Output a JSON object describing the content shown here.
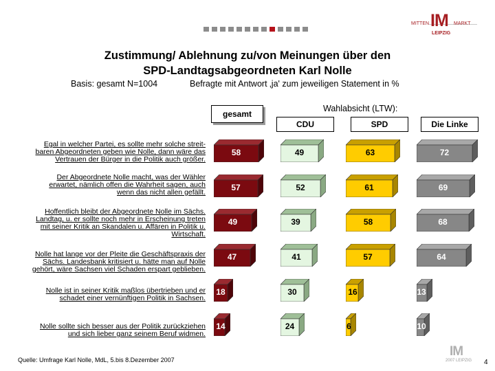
{
  "branding": {
    "logo_left": "MITTEN",
    "logo_main": "IM",
    "logo_right": "MARKT",
    "logo_city": "LEIPZIG",
    "footer_logo_main": "IM",
    "footer_logo_sub": "2007 LEIPZIG",
    "accent": "#a61e22"
  },
  "header": {
    "title_line1": "Zustimmung/ Ablehnung zu/von Meinungen über den",
    "title_line2": "SPD-Landtagsabgeordneten Karl Nolle",
    "basis": "Basis: gesamt  N=1004",
    "basis_note": "Befragte mit Antwort ‚ja' zum jeweiligen Statement in %"
  },
  "columns": {
    "group_label": "Wahlabsicht (LTW):",
    "gesamt": "gesamt",
    "cdu": "CDU",
    "spd": "SPD",
    "linke": "Die Linke"
  },
  "chart_data": {
    "type": "bar",
    "orientation": "horizontal",
    "unit": "%",
    "xlim": [
      0,
      100
    ],
    "categories": [
      "Egal in welcher Partei, es sollte mehr solche streitbaren Abgeordneten geben wie Nolle, dann wäre das Vertrauen der Bürger in die Politik auch größer.",
      "Der Abgeordnete Nolle macht, was der Wähler erwartet, nämlich offen die Wahrheit sagen, auch wenn das nicht allen gefällt.",
      "Hoffentlich bleibt der Abgeordnete Nolle im Sächs. Landtag, u. er sollte noch mehr in Erscheinung treten mit seiner Kritik an Skandalen u. Affären in Politik u. Wirtschaft.",
      "Nolle hat lange vor der Pleite die Geschäftspraxis der Sächs. Landesbank kritisiert u. hätte man auf Nolle gehört, wäre Sachsen viel Schaden erspart geblieben.",
      "Nolle ist in seiner Kritik maßlos übertrieben und er schadet einer vernünftigen Politik in Sachsen.",
      "Nolle sollte sich besser aus der Politik zurückziehen und sich lieber ganz seinem Beruf widmen."
    ],
    "statement_lines": [
      [
        "Egal in welcher Partei, es sollte mehr solche streit-",
        "baren Abgeordneten geben wie Nolle, dann wäre das",
        "Vertrauen der Bürger in die Politik auch größer."
      ],
      [
        "Der Abgeordnete Nolle macht, was der Wähler",
        "erwartet, nämlich offen die Wahrheit sagen, auch",
        "wenn das nicht allen gefällt."
      ],
      [
        "Hoffentlich bleibt der Abgeordnete Nolle im Sächs.",
        "Landtag, u. er sollte noch mehr in Erscheinung treten",
        "mit seiner Kritik an Skandalen u. Affären in Politik u.",
        "Wirtschaft."
      ],
      [
        "Nolle hat lange vor der Pleite die Geschäftspraxis der",
        "Sächs. Landesbank kritisiert u. hätte man auf Nolle",
        "gehört, wäre Sachsen viel Schaden erspart geblieben."
      ],
      [
        "Nolle ist in seiner Kritik maßlos übertrieben und er",
        "schadet einer vernünftigen Politik in Sachsen."
      ],
      [
        "Nolle sollte sich besser aus der Politik zurückziehen",
        "und sich lieber ganz seinem Beruf widmen."
      ]
    ],
    "series": [
      {
        "name": "gesamt",
        "values": [
          58,
          57,
          49,
          47,
          18,
          14
        ],
        "color": "#7b0a10",
        "top": "#9a2a30",
        "side": "#4e0509",
        "text": "#ffffff"
      },
      {
        "name": "CDU",
        "values": [
          49,
          52,
          39,
          41,
          30,
          24
        ],
        "color": "#e4f6e1",
        "top": "#9fbf98",
        "side": "#8aa983",
        "text": "#000000"
      },
      {
        "name": "SPD",
        "values": [
          63,
          61,
          58,
          57,
          16,
          6
        ],
        "color": "#ffcc00",
        "top": "#c9a000",
        "side": "#a88600",
        "text": "#000000"
      },
      {
        "name": "Die Linke",
        "values": [
          72,
          69,
          68,
          64,
          13,
          10
        ],
        "color": "#878787",
        "top": "#a8a8a8",
        "side": "#5e5e5e",
        "text": "#ffffff"
      }
    ]
  },
  "footer": {
    "source": "Quelle: Umfrage Karl Nolle, MdL, 5.bis 8.Dezember 2007",
    "page_number": "4"
  }
}
